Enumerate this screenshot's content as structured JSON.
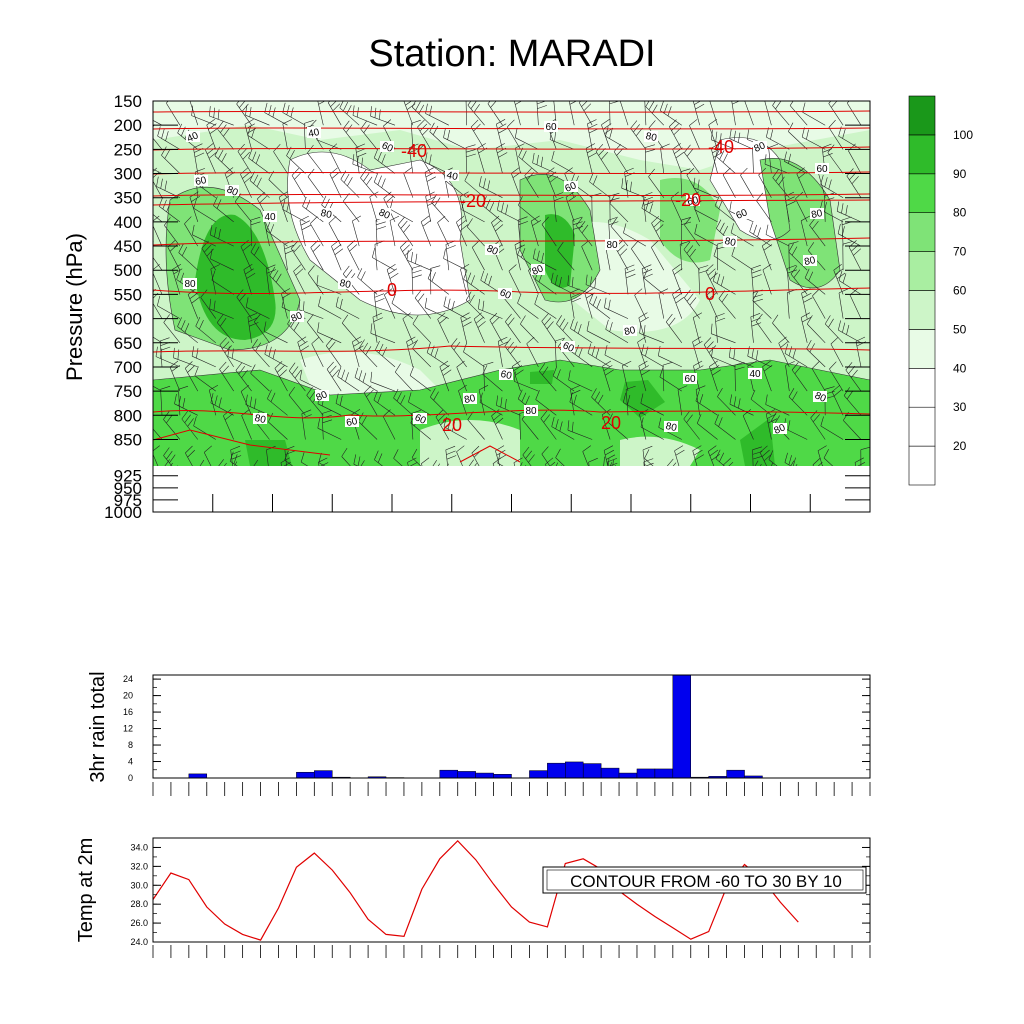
{
  "title": "Station: MARADI",
  "info_label": "CONTOUR FROM -60 TO 30 BY 10",
  "colors": {
    "rain_bar": "#0000ee",
    "temp_line": "#e00000",
    "isotherm": "#e00000",
    "shade_levels": [
      "#ffffff",
      "#ffffff",
      "#ffffff",
      "#e8fbe6",
      "#cdf5c8",
      "#a9eea1",
      "#7fe377",
      "#4fd947",
      "#2fbb2a",
      "#1a981a"
    ]
  },
  "chart_data": [
    {
      "type": "contour",
      "title": "Station: MARADI",
      "ylabel": "Pressure (hPa)",
      "pressure_levels": [
        150,
        200,
        250,
        300,
        350,
        400,
        450,
        500,
        550,
        600,
        650,
        700,
        750,
        800,
        850,
        925,
        950,
        975,
        1000
      ],
      "colorbar": {
        "levels": [
          20,
          30,
          40,
          50,
          60,
          70,
          80,
          90,
          100
        ],
        "labels": [
          "20",
          "30",
          "40",
          "50",
          "60",
          "70",
          "80",
          "90",
          "100"
        ]
      },
      "isotherm_labels": [
        {
          "value": "-40",
          "at": "250 hPa"
        },
        {
          "value": "-40",
          "at": "250 hPa"
        },
        {
          "value": "-20",
          "at": "375 hPa"
        },
        {
          "value": "-20",
          "at": "375 hPa"
        },
        {
          "value": "0",
          "at": "575 hPa"
        },
        {
          "value": "0",
          "at": "575 hPa"
        },
        {
          "value": "20",
          "at": "860 hPa"
        },
        {
          "value": "20",
          "at": "860 hPa"
        }
      ],
      "rh_contour_labels": [
        "40",
        "40",
        "60",
        "80",
        "60",
        "80",
        "60",
        "60",
        "40",
        "80",
        "60",
        "60",
        "40",
        "80",
        "80",
        "60",
        "80",
        "80",
        "80",
        "80",
        "80",
        "80",
        "80",
        "80",
        "60",
        "80",
        "80",
        "40",
        "60",
        "80",
        "80",
        "60",
        "80",
        "80",
        "60",
        "80",
        "80",
        "60",
        "80",
        "60"
      ]
    },
    {
      "type": "bar",
      "ylabel": "3hr rain total",
      "yticks": [
        "0",
        "4",
        "8",
        "12",
        "16",
        "20",
        "24"
      ],
      "ylim": [
        0,
        25
      ],
      "values": [
        0,
        0,
        1,
        0,
        0,
        0,
        0,
        0,
        1.4,
        1.8,
        0.2,
        0,
        0.3,
        0.1,
        0,
        0,
        1.9,
        1.6,
        1.2,
        0.9,
        0,
        1.8,
        3.6,
        3.9,
        3.5,
        2.4,
        1.2,
        2.2,
        2.2,
        25,
        0.2,
        0.4,
        1.9,
        0.5,
        0,
        0,
        0,
        0,
        0,
        0
      ]
    },
    {
      "type": "line",
      "ylabel": "Temp at 2m",
      "yticks": [
        "24.0",
        "26.0",
        "28.0",
        "30.0",
        "32.0",
        "34.0"
      ],
      "ylim": [
        24,
        35
      ],
      "values": [
        28.5,
        31.3,
        30.6,
        27.7,
        25.9,
        24.8,
        24.2,
        27.6,
        31.9,
        33.4,
        31.6,
        29.2,
        26.4,
        24.8,
        24.6,
        29.6,
        32.8,
        34.7,
        32.7,
        30.1,
        27.7,
        26.1,
        25.6,
        32.3,
        32.8,
        31.7,
        29.4,
        28.0,
        26.7,
        25.5,
        24.3,
        25.1,
        29.8,
        32.2,
        30.6,
        28.2,
        26.1
      ]
    }
  ]
}
